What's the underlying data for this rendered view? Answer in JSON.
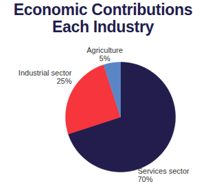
{
  "chart_data": {
    "type": "pie",
    "title": "Economic Contributions Each Industry",
    "categories": [
      "Services sector",
      "Industrial sector",
      "Agriculture"
    ],
    "values": [
      70,
      25,
      5
    ],
    "value_labels": [
      "70%",
      "25%",
      "5%"
    ],
    "colors": [
      "#221d4d",
      "#f6353c",
      "#5b86c5"
    ],
    "data_labels": true
  }
}
